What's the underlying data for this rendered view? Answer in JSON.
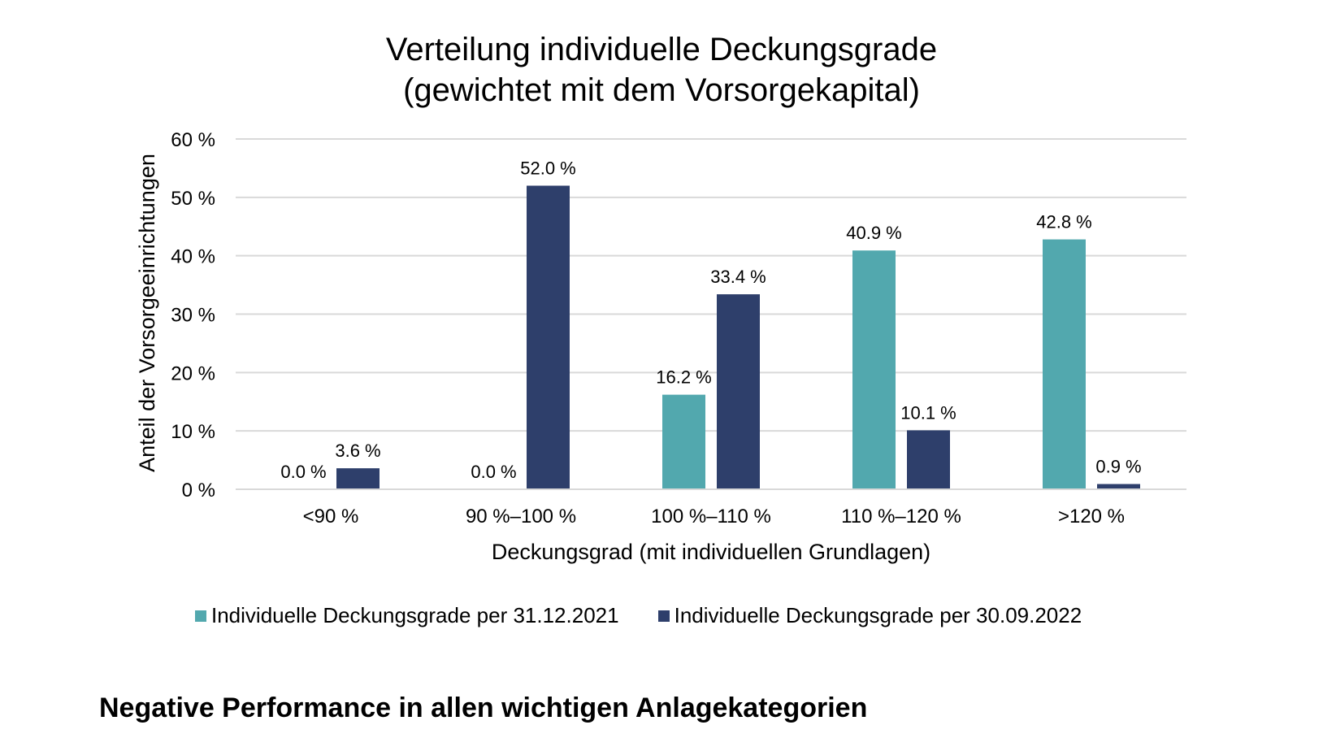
{
  "chart_data": {
    "type": "bar",
    "title": [
      "Verteilung individuelle Deckungsgrade",
      "(gewichtet mit dem Vorsorgekapital)"
    ],
    "xlabel": "Deckungsgrad (mit individuellen Grundlagen)",
    "ylabel": "Anteil der Vorsorgeeinrichtungen",
    "ylim": [
      0,
      60
    ],
    "yticks": [
      0,
      10,
      20,
      30,
      40,
      50,
      60
    ],
    "ytick_labels": [
      "0 %",
      "10 %",
      "20 %",
      "30 %",
      "40 %",
      "50 %",
      "60 %"
    ],
    "grid": true,
    "legend_position": "bottom",
    "categories": [
      "<90 %",
      "90 %–100 %",
      "100 %–110 %",
      "110 %–120 %",
      ">120 %"
    ],
    "series": [
      {
        "name": "Individuelle Deckungsgrade per 31.12.2021",
        "color": "#52a8ae",
        "values": [
          0.0,
          0.0,
          16.2,
          40.9,
          42.8
        ],
        "labels": [
          "0.0 %",
          "0.0 %",
          "16.2 %",
          "40.9 %",
          "42.8 %"
        ]
      },
      {
        "name": "Individuelle Deckungsgrade per 30.09.2022",
        "color": "#2e3f6b",
        "values": [
          3.6,
          52.0,
          33.4,
          10.1,
          0.9
        ],
        "labels": [
          "3.6 %",
          "52.0 %",
          "33.4 %",
          "10.1 %",
          "0.9 %"
        ]
      }
    ]
  },
  "section_heading": "Negative Performance in allen wichtigen Anlagekategorien"
}
